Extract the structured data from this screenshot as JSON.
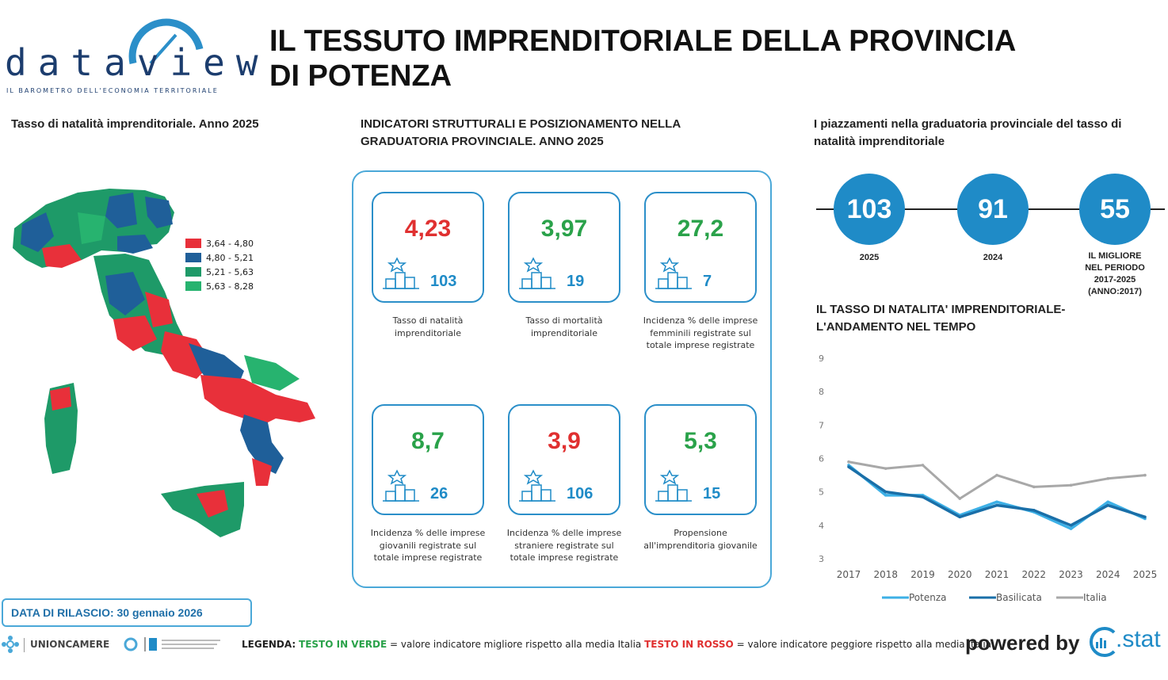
{
  "brand": {
    "logo_text": "dataview",
    "logo_subtitle": "IL BAROMETRO DELL'ECONOMIA TERRITORIALE"
  },
  "title": "IL TESSUTO IMPRENDITORIALE DELLA PROVINCIA DI POTENZA",
  "map_section": {
    "title": "Tasso di natalità imprenditoriale. Anno 2025",
    "legend": [
      {
        "label": "3,64 - 4,80",
        "color": "#e8303a"
      },
      {
        "label": "4,80 - 5,21",
        "color": "#1f5f99"
      },
      {
        "label": "5,21 - 5,63",
        "color": "#1e9a68"
      },
      {
        "label": "5,63 - 8,28",
        "color": "#27b36f"
      }
    ]
  },
  "indicators": {
    "title": "INDICATORI STRUTTURALI E POSIZIONAMENTO NELLA GRADUATORIA PROVINCIALE. ANNO 2025",
    "cards": [
      {
        "value": "4,23",
        "rank": "103",
        "desc": "Tasso di natalità imprenditoriale",
        "color": "#e03030"
      },
      {
        "value": "3,97",
        "rank": "19",
        "desc": "Tasso di mortalità imprenditoriale",
        "color": "#2aa24a"
      },
      {
        "value": "27,2",
        "rank": "7",
        "desc": "Incidenza % delle imprese femminili registrate sul totale imprese registrate",
        "color": "#2aa24a"
      },
      {
        "value": "8,7",
        "rank": "26",
        "desc": "Incidenza % delle imprese giovanili registrate sul totale imprese registrate",
        "color": "#2aa24a"
      },
      {
        "value": "3,9",
        "rank": "106",
        "desc": "Incidenza % delle imprese straniere registrate sul totale imprese registrate",
        "color": "#e03030"
      },
      {
        "value": "5,3",
        "rank": "15",
        "desc": "Propensione all'imprenditoria giovanile",
        "color": "#2aa24a"
      }
    ]
  },
  "rankings": {
    "title": "I piazzamenti nella graduatoria provinciale del tasso di natalità imprenditoriale",
    "items": [
      {
        "value": "103",
        "label": "2025"
      },
      {
        "value": "91",
        "label": "2024"
      },
      {
        "value": "55",
        "label": "IL MIGLIORE NEL PERIODO 2017-2025 (ANNO:2017)"
      }
    ]
  },
  "chart_data": {
    "type": "line",
    "title": "IL TASSO DI NATALITA' IMPRENDITORIALE- L'ANDAMENTO NEL TEMPO",
    "x": [
      "2017",
      "2018",
      "2019",
      "2020",
      "2021",
      "2022",
      "2023",
      "2024",
      "2025"
    ],
    "ylim": [
      3,
      9
    ],
    "yticks": [
      "3",
      "4",
      "5",
      "6",
      "7",
      "8",
      "9"
    ],
    "series": [
      {
        "name": "Potenza",
        "color": "#3db0e6",
        "values": [
          5.8,
          4.9,
          4.9,
          4.3,
          4.7,
          4.4,
          3.9,
          4.7,
          4.2
        ]
      },
      {
        "name": "Basilicata",
        "color": "#1a6fa8",
        "values": [
          5.75,
          5.0,
          4.85,
          4.25,
          4.6,
          4.45,
          4.0,
          4.6,
          4.25
        ]
      },
      {
        "name": "Italia",
        "color": "#a8a8a8",
        "values": [
          5.9,
          5.7,
          5.8,
          4.8,
          5.5,
          5.15,
          5.2,
          5.4,
          5.5
        ]
      }
    ]
  },
  "footer": {
    "release": "DATA DI RILASCIO: 30 gennaio 2026",
    "unioncamere": "UNIONCAMERE",
    "legend_label": "LEGENDA:",
    "green_text": "TESTO IN VERDE",
    "green_desc": "= valore indicatore migliore rispetto alla media Italia",
    "red_text": "TESTO IN ROSSO",
    "red_desc": "= valore indicatore peggiore rispetto alla media Italia",
    "powered_by": "powered by",
    "cstat": ".stat"
  }
}
